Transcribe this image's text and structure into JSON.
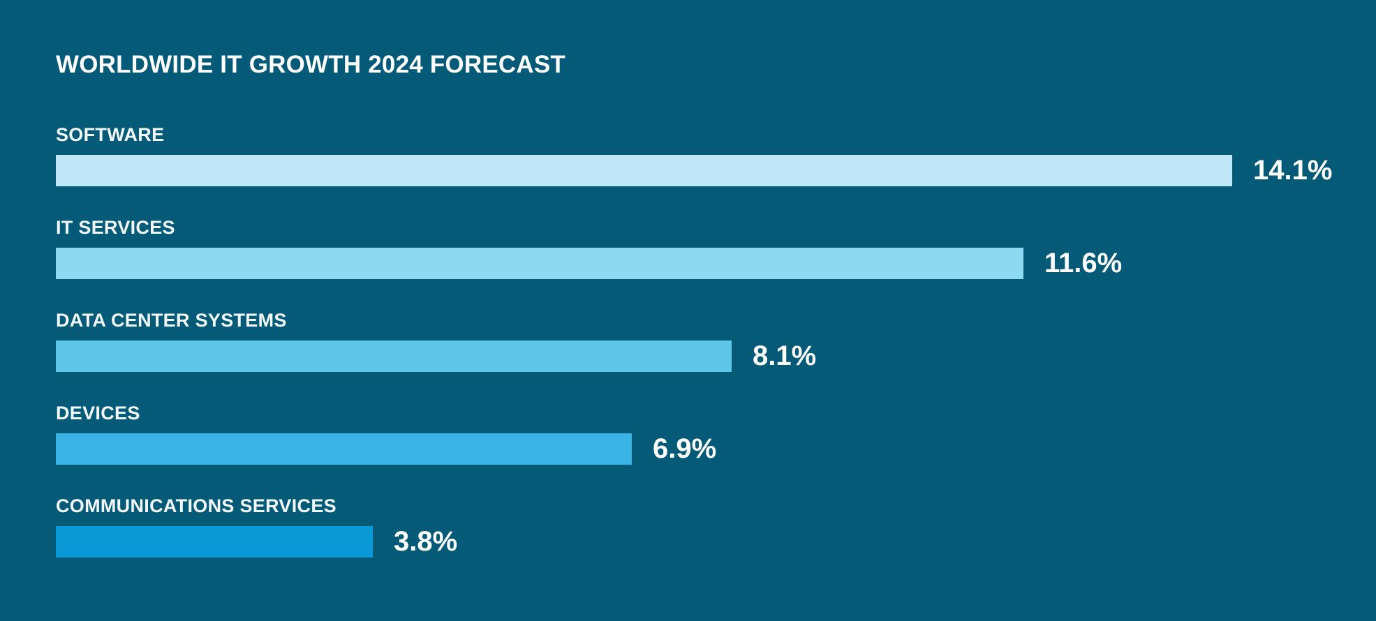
{
  "chart": {
    "title": "WORLDWIDE IT GROWTH 2024 FORECAST"
  },
  "chart_data": {
    "type": "bar",
    "orientation": "horizontal",
    "title": "WORLDWIDE IT GROWTH 2024 FORECAST",
    "unit": "%",
    "xlim": [
      0,
      14.1
    ],
    "grid": false,
    "legend": "none",
    "value_labels": "end-of-bar",
    "categories": [
      "SOFTWARE",
      "IT SERVICES",
      "DATA CENTER SYSTEMS",
      "DEVICES",
      "COMMUNICATIONS SERVICES"
    ],
    "values": [
      14.1,
      11.6,
      8.1,
      6.9,
      3.8
    ],
    "rows": [
      {
        "label": "SOFTWARE",
        "value": 14.1,
        "value_label": "14.1%",
        "color": "#bfe6f7"
      },
      {
        "label": "IT SERVICES",
        "value": 11.6,
        "value_label": "11.6%",
        "color": "#8ed9f2"
      },
      {
        "label": "DATA CENTER SYSTEMS",
        "value": 8.1,
        "value_label": "8.1%",
        "color": "#5fc5e9"
      },
      {
        "label": "DEVICES",
        "value": 6.9,
        "value_label": "6.9%",
        "color": "#39b4e4"
      },
      {
        "label": "COMMUNICATIONS SERVICES",
        "value": 3.8,
        "value_label": "3.8%",
        "color": "#0899d6"
      }
    ],
    "colors": {
      "background": "#055a78",
      "title_text": "#ffffff",
      "label_text": "#f2f8fb",
      "value_text": "#ffffff"
    }
  }
}
